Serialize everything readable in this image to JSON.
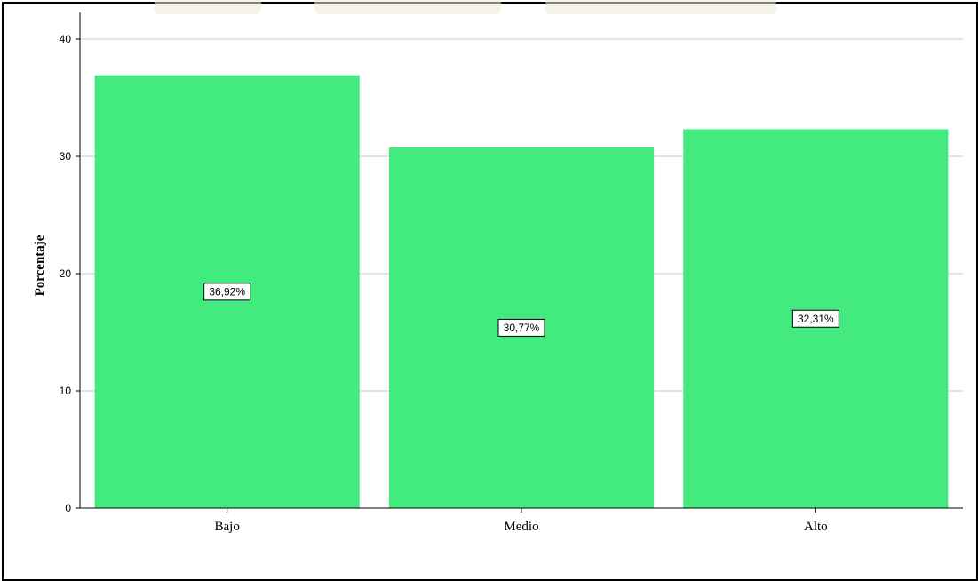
{
  "chart_data": {
    "type": "bar",
    "categories": [
      "Bajo",
      "Medio",
      "Alto"
    ],
    "values": [
      36.92,
      30.77,
      32.31
    ],
    "data_labels": [
      "36,92%",
      "30,77%",
      "32,31%"
    ],
    "title": "",
    "xlabel": "",
    "ylabel": "Porcentaje",
    "ylim": [
      0,
      40
    ],
    "yticks": [
      0,
      10,
      20,
      30,
      40
    ],
    "ytick_labels": [
      "0",
      "10",
      "20",
      "30",
      "40"
    ],
    "grid": true,
    "legend": "none",
    "bar_color": "#43eb7f",
    "grid_color": "#c8c8c8"
  }
}
